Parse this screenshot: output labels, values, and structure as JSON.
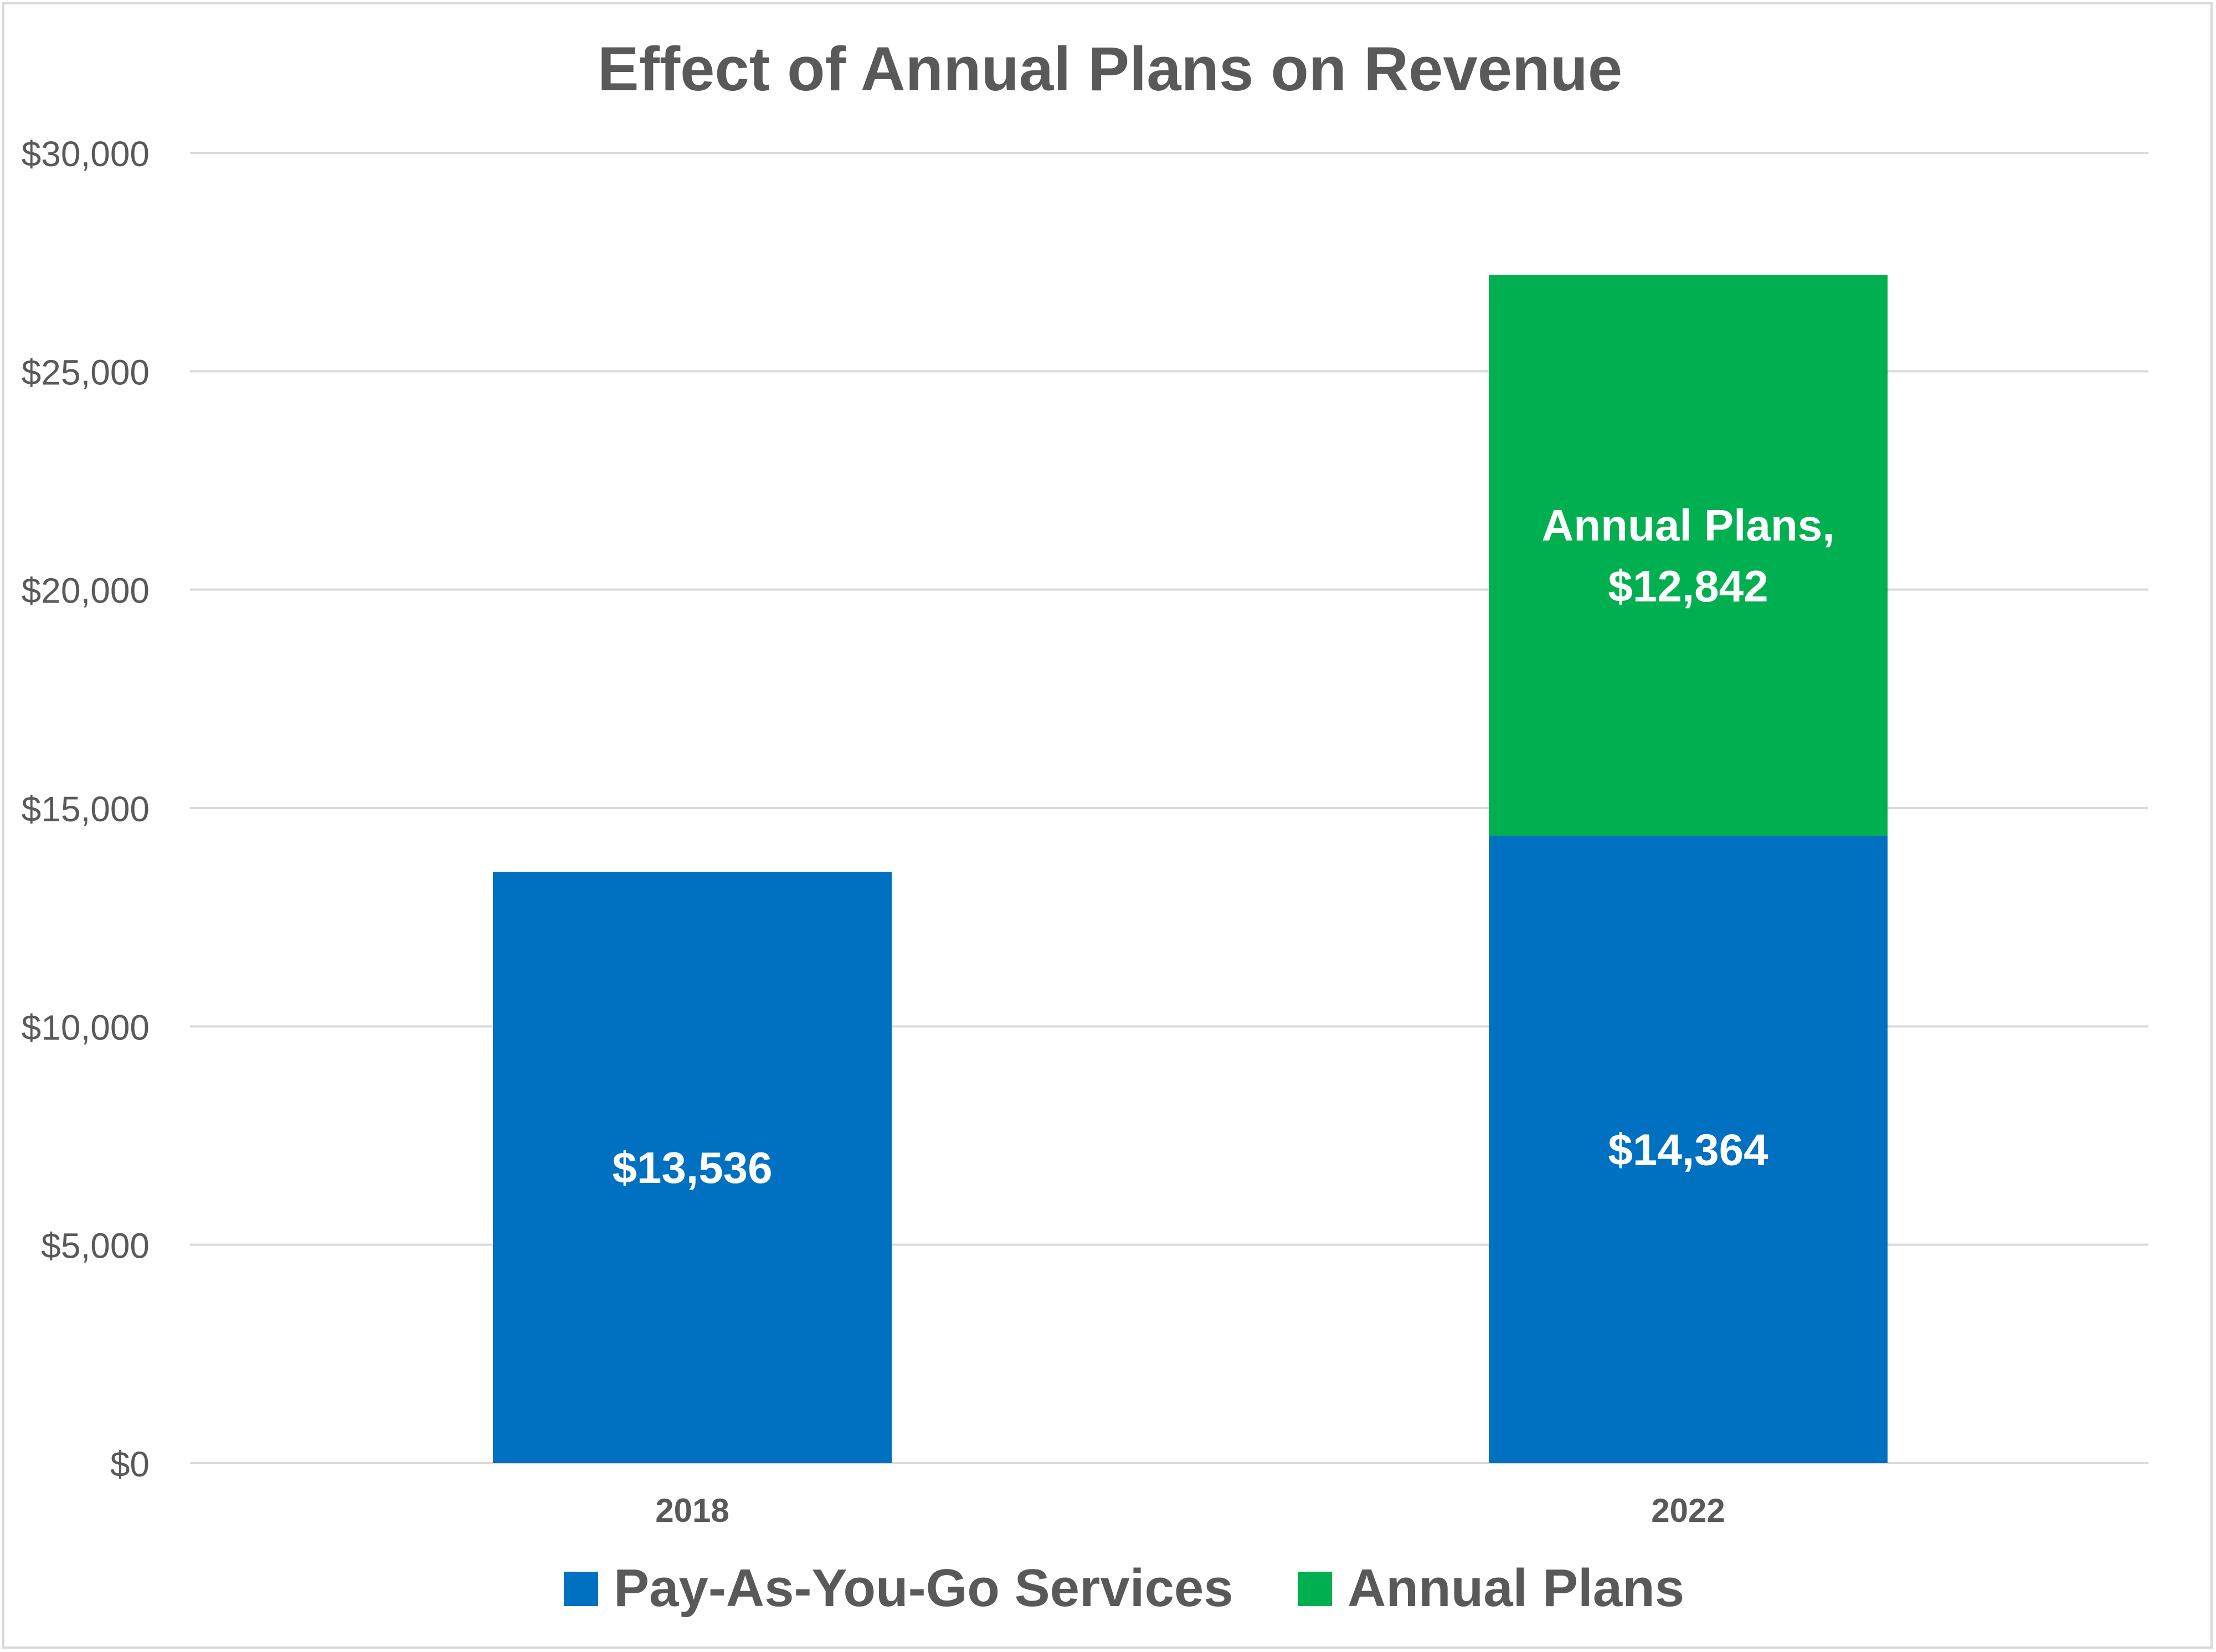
{
  "chart_data": {
    "type": "bar",
    "stacked": true,
    "title": "Effect of Annual Plans on Revenue",
    "xlabel": "",
    "ylabel": "",
    "categories": [
      "2018",
      "2022"
    ],
    "ylim": [
      0,
      30000
    ],
    "yticks": [
      0,
      5000,
      10000,
      15000,
      20000,
      25000,
      30000
    ],
    "ytick_labels": [
      "$0",
      "$5,000",
      "$10,000",
      "$15,000",
      "$20,000",
      "$25,000",
      "$30,000"
    ],
    "grid": true,
    "legend_position": "bottom",
    "series": [
      {
        "name": "Pay-As-You-Go Services",
        "color": "#0070c0",
        "values": [
          13536,
          14364
        ],
        "data_labels": [
          "$13,536",
          "$14,364"
        ]
      },
      {
        "name": "Annual Plans",
        "color": "#00b050",
        "values": [
          0,
          12842
        ],
        "data_labels": [
          "",
          "Annual Plans,\n$12,842"
        ]
      }
    ]
  }
}
